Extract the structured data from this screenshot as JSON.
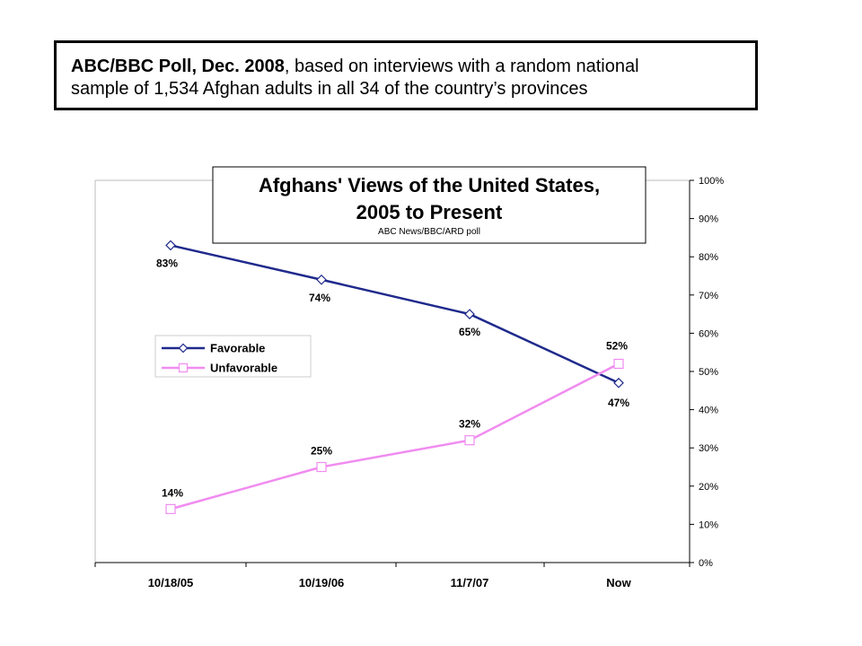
{
  "header": {
    "bold": "ABC/BBC Poll, Dec. 2008",
    "rest": ", based on interviews with a random national",
    "line2": "sample of 1,534 Afghan adults in all 34 of the country’s provinces"
  },
  "chart_data": {
    "type": "line",
    "title_line1": "Afghans' Views of the United States,",
    "title_line2": "2005 to Present",
    "subtitle": "ABC News/BBC/ARD poll",
    "categories": [
      "10/18/05",
      "10/19/06",
      "11/7/07",
      "Now"
    ],
    "ylim": [
      0,
      100
    ],
    "yticks": [
      "0%",
      "10%",
      "20%",
      "30%",
      "40%",
      "50%",
      "60%",
      "70%",
      "80%",
      "90%",
      "100%"
    ],
    "grid": false,
    "legend_placement": "left",
    "series": [
      {
        "name": "Favorable",
        "values": [
          83,
          74,
          65,
          47
        ],
        "labels": [
          "83%",
          "74%",
          "65%",
          "47%"
        ],
        "color": "#1f2a8c",
        "marker": "diamond"
      },
      {
        "name": "Unfavorable",
        "values": [
          14,
          25,
          32,
          52
        ],
        "labels": [
          "14%",
          "25%",
          "32%",
          "52%"
        ],
        "color": "#f08cf0",
        "marker": "square"
      }
    ]
  }
}
